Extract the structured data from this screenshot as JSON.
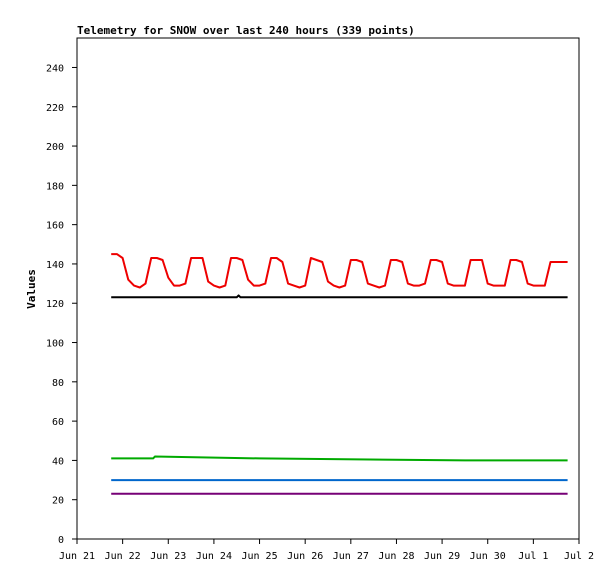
{
  "chart_data": {
    "type": "line",
    "title": "Telemetry for SNOW over last 240 hours (339 points)",
    "xlabel": "",
    "ylabel": "Values",
    "xlim": [
      "2025-06-21",
      "2025-07-02"
    ],
    "ylim": [
      0,
      255
    ],
    "x_ticks": [
      "Jun 21",
      "Jun 22",
      "Jun 23",
      "Jun 24",
      "Jun 25",
      "Jun 26",
      "Jun 27",
      "Jun 28",
      "Jun 29",
      "Jun 30",
      "Jul 1",
      "Jul 2"
    ],
    "y_ticks": [
      0,
      20,
      40,
      60,
      80,
      100,
      120,
      140,
      160,
      180,
      200,
      220,
      240
    ],
    "grid": false,
    "legend": "none",
    "series": [
      {
        "color": "#ee0000",
        "x": [
          "2025-06-21 18:00",
          "2025-06-21 21:00",
          "2025-06-22 00:00",
          "2025-06-22 03:00",
          "2025-06-22 06:00",
          "2025-06-22 09:00",
          "2025-06-22 12:00",
          "2025-06-22 15:00",
          "2025-06-22 18:00",
          "2025-06-22 21:00",
          "2025-06-23 00:00",
          "2025-06-23 03:00",
          "2025-06-23 06:00",
          "2025-06-23 09:00",
          "2025-06-23 12:00",
          "2025-06-23 15:00",
          "2025-06-23 18:00",
          "2025-06-23 21:00",
          "2025-06-24 00:00",
          "2025-06-24 03:00",
          "2025-06-24 06:00",
          "2025-06-24 09:00",
          "2025-06-24 12:00",
          "2025-06-24 15:00",
          "2025-06-24 18:00",
          "2025-06-24 21:00",
          "2025-06-25 00:00",
          "2025-06-25 03:00",
          "2025-06-25 06:00",
          "2025-06-25 09:00",
          "2025-06-25 12:00",
          "2025-06-25 15:00",
          "2025-06-25 18:00",
          "2025-06-25 21:00",
          "2025-06-26 00:00",
          "2025-06-26 03:00",
          "2025-06-26 06:00",
          "2025-06-26 09:00",
          "2025-06-26 12:00",
          "2025-06-26 15:00",
          "2025-06-26 18:00",
          "2025-06-26 21:00",
          "2025-06-27 00:00",
          "2025-06-27 03:00",
          "2025-06-27 06:00",
          "2025-06-27 09:00",
          "2025-06-27 12:00",
          "2025-06-27 15:00",
          "2025-06-27 18:00",
          "2025-06-27 21:00",
          "2025-06-28 00:00",
          "2025-06-28 03:00",
          "2025-06-28 06:00",
          "2025-06-28 09:00",
          "2025-06-28 12:00",
          "2025-06-28 15:00",
          "2025-06-28 18:00",
          "2025-06-28 21:00",
          "2025-06-29 00:00",
          "2025-06-29 03:00",
          "2025-06-29 06:00",
          "2025-06-29 09:00",
          "2025-06-29 12:00",
          "2025-06-29 15:00",
          "2025-06-29 18:00",
          "2025-06-29 21:00",
          "2025-06-30 00:00",
          "2025-06-30 03:00",
          "2025-06-30 06:00",
          "2025-06-30 09:00",
          "2025-06-30 12:00",
          "2025-06-30 15:00",
          "2025-06-30 18:00",
          "2025-06-30 21:00",
          "2025-07-01 00:00",
          "2025-07-01 03:00",
          "2025-07-01 06:00",
          "2025-07-01 09:00",
          "2025-07-01 12:00",
          "2025-07-01 15:00",
          "2025-07-01 18:00"
        ],
        "y": [
          145,
          145,
          143,
          132,
          129,
          128,
          130,
          143,
          143,
          142,
          133,
          129,
          129,
          130,
          143,
          143,
          143,
          131,
          129,
          128,
          129,
          143,
          143,
          142,
          132,
          129,
          129,
          130,
          143,
          143,
          141,
          130,
          129,
          128,
          129,
          143,
          142,
          141,
          131,
          129,
          128,
          129,
          142,
          142,
          141,
          130,
          129,
          128,
          129,
          142,
          142,
          141,
          130,
          129,
          129,
          130,
          142,
          142,
          141,
          130,
          129,
          129,
          129,
          142,
          142,
          142,
          130,
          129,
          129,
          129,
          142,
          142,
          141,
          130,
          129,
          129,
          129,
          141,
          141,
          141,
          141
        ]
      },
      {
        "color": "#000000",
        "x": [
          "2025-06-21 18:00",
          "2025-06-24 12:00",
          "2025-06-24 13:00",
          "2025-06-24 14:00",
          "2025-07-01 18:00"
        ],
        "y": [
          123,
          123,
          124,
          123,
          123
        ]
      },
      {
        "color": "#00aa00",
        "x": [
          "2025-06-21 18:00",
          "2025-06-22 16:00",
          "2025-06-22 17:00",
          "2025-06-25 00:00",
          "2025-06-29 12:00",
          "2025-07-01 18:00"
        ],
        "y": [
          41,
          41,
          42,
          41,
          40,
          40
        ]
      },
      {
        "color": "#0066cc",
        "x": [
          "2025-06-21 18:00",
          "2025-07-01 18:00"
        ],
        "y": [
          30,
          30
        ]
      },
      {
        "color": "#770077",
        "x": [
          "2025-06-21 18:00",
          "2025-07-01 18:00"
        ],
        "y": [
          23,
          23
        ]
      }
    ]
  }
}
